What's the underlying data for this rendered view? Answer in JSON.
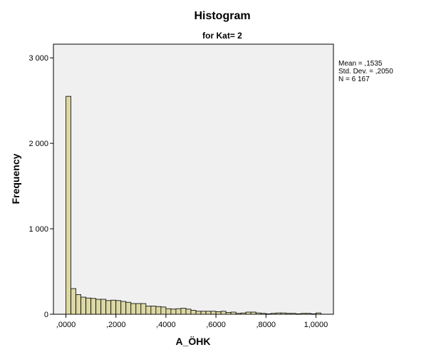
{
  "chart_data": {
    "type": "histogram",
    "title": "Histogram",
    "subtitle": "for Kat= 2",
    "x_label": "A_ÖHK",
    "y_label": "Frequency",
    "bins": [
      0,
      0.02,
      0.04,
      0.06,
      0.08,
      0.1,
      0.12,
      0.14,
      0.16,
      0.18,
      0.2,
      0.22,
      0.24,
      0.26,
      0.28,
      0.3,
      0.32,
      0.34,
      0.36,
      0.38,
      0.4,
      0.42,
      0.44,
      0.46,
      0.48,
      0.5,
      0.52,
      0.54,
      0.56,
      0.58,
      0.6,
      0.62,
      0.64,
      0.66,
      0.68,
      0.7,
      0.72,
      0.74,
      0.76,
      0.78,
      0.8,
      0.82,
      0.84,
      0.86,
      0.88,
      0.9,
      0.92,
      0.94,
      0.96,
      0.98,
      1.0,
      1.02
    ],
    "counts": [
      2550,
      300,
      230,
      200,
      190,
      185,
      175,
      175,
      160,
      165,
      160,
      150,
      140,
      125,
      125,
      125,
      95,
      95,
      90,
      85,
      65,
      60,
      65,
      70,
      60,
      45,
      35,
      35,
      35,
      35,
      30,
      35,
      20,
      25,
      10,
      15,
      25,
      25,
      15,
      10,
      5,
      10,
      15,
      15,
      10,
      10,
      5,
      10,
      10,
      5,
      15
    ],
    "color": "#dcd8a4",
    "xlim": [
      -0.05,
      1.07
    ],
    "xticks": [
      {
        "value": 0,
        "label": ",0000"
      },
      {
        "value": 0.2,
        "label": ",2000"
      },
      {
        "value": 0.4,
        "label": ",4000"
      },
      {
        "value": 0.6,
        "label": ",6000"
      },
      {
        "value": 0.8,
        "label": ",8000"
      },
      {
        "value": 1.0,
        "label": "1,0000"
      }
    ],
    "ylim": [
      0,
      3160
    ],
    "yticks": [
      0,
      {
        "value": 1000,
        "label": "1 000"
      },
      {
        "value": 2000,
        "label": "2 000"
      },
      {
        "value": 3000,
        "label": "3 000"
      }
    ],
    "stats": [
      "Mean = ,1535",
      "Std. Dev. = ,2050",
      "N = 6 167"
    ]
  }
}
